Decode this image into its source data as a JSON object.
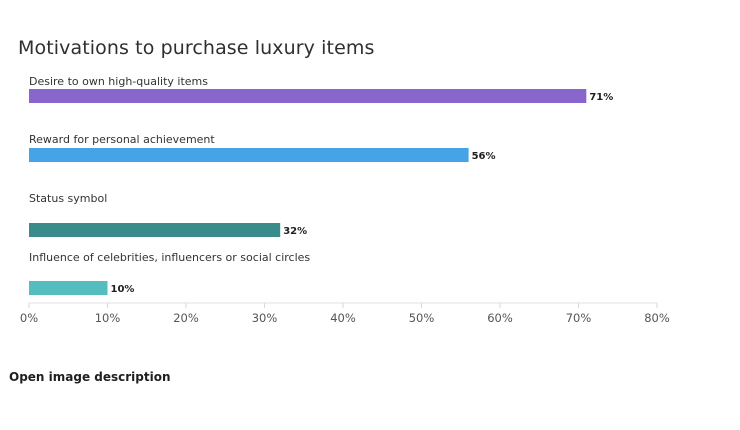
{
  "chart_data": {
    "type": "bar",
    "orientation": "horizontal",
    "title": "Motivations to purchase luxury items",
    "categories": [
      "Desire to own high-quality items",
      "Reward for personal achievement",
      "Status symbol",
      "Influence of celebrities, influencers or social circles"
    ],
    "values": [
      71,
      56,
      32,
      10
    ],
    "value_labels": [
      "71%",
      "56%",
      "32%",
      "10%"
    ],
    "colors": [
      "#8866cc",
      "#45a3e6",
      "#3a8c8c",
      "#55bdbd"
    ],
    "xlim": [
      0,
      80
    ],
    "xticks": [
      0,
      10,
      20,
      30,
      40,
      50,
      60,
      70,
      80
    ],
    "xtick_labels": [
      "0%",
      "10%",
      "20%",
      "30%",
      "40%",
      "50%",
      "60%",
      "70%",
      "80%"
    ],
    "xlabel": "",
    "ylabel": "",
    "grid": false,
    "legend": "none"
  },
  "footer": {
    "open_description": "Open image description"
  }
}
